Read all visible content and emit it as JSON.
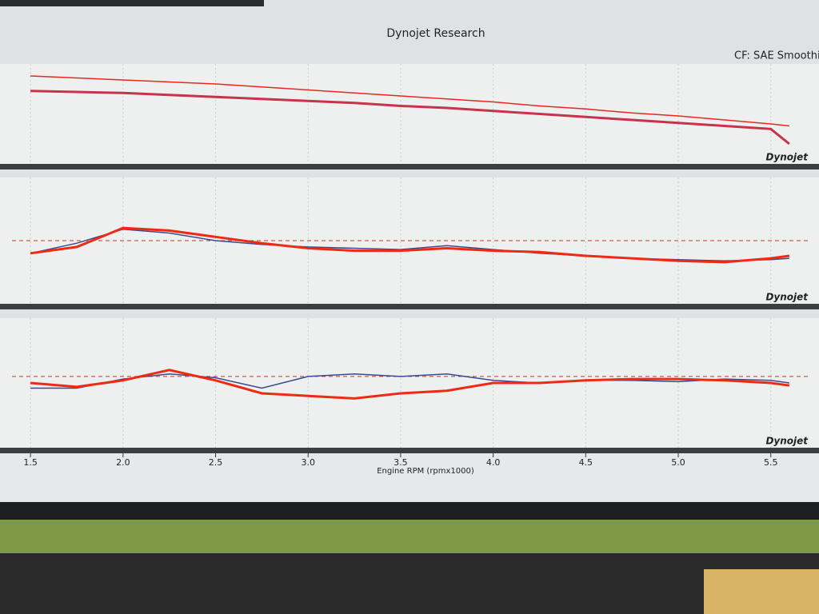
{
  "header": {
    "title": "Dynojet Research",
    "correction": "CF: SAE Smoothin"
  },
  "chart_data": [
    {
      "type": "line",
      "watermark": "Dynojet",
      "x": [
        1.5,
        1.75,
        2.0,
        2.25,
        2.5,
        2.75,
        3.0,
        3.25,
        3.5,
        3.75,
        4.0,
        4.25,
        4.5,
        4.75,
        5.0,
        5.25,
        5.5,
        5.6
      ],
      "xlim": [
        1.4,
        5.7
      ],
      "ylim": [
        0,
        100
      ],
      "series": [
        {
          "color": "#e8281c",
          "values": [
            88,
            86,
            84,
            82,
            80,
            77,
            74,
            71,
            68,
            65,
            62,
            58,
            55,
            51,
            48,
            44,
            40,
            38
          ]
        },
        {
          "color": "#c8324a",
          "values": [
            73,
            72,
            71,
            69,
            67,
            65,
            63,
            61,
            58,
            56,
            53,
            50,
            47,
            44,
            41,
            38,
            35,
            20
          ]
        }
      ]
    },
    {
      "type": "line",
      "watermark": "Dynojet",
      "x": [
        1.5,
        1.75,
        2.0,
        2.25,
        2.5,
        2.75,
        3.0,
        3.25,
        3.5,
        3.75,
        4.0,
        4.25,
        4.5,
        4.75,
        5.0,
        5.25,
        5.5,
        5.6
      ],
      "xlim": [
        1.4,
        5.7
      ],
      "ylim": [
        0,
        100
      ],
      "reference_line": 50,
      "series": [
        {
          "color": "#3a4a8c",
          "values": [
            40,
            48,
            59,
            56,
            50,
            47,
            45,
            44,
            43,
            46,
            43,
            40,
            38,
            36,
            35,
            34,
            35,
            36
          ]
        },
        {
          "color": "#ee2a12",
          "values": [
            40,
            45,
            60,
            58,
            53,
            48,
            44,
            42,
            42,
            44,
            42,
            41,
            38,
            36,
            34,
            33,
            36,
            38
          ]
        }
      ]
    },
    {
      "type": "line",
      "watermark": "Dynojet",
      "xlabel": "Engine RPM (rpmx1000)",
      "x": [
        1.5,
        1.75,
        2.0,
        2.25,
        2.5,
        2.75,
        3.0,
        3.25,
        3.5,
        3.75,
        4.0,
        4.25,
        4.5,
        4.75,
        5.0,
        5.25,
        5.5,
        5.6
      ],
      "xlim": [
        1.4,
        5.7
      ],
      "ylim": [
        0,
        100
      ],
      "reference_line": 55,
      "xticks": [
        1.5,
        {
          "value": 2,
          "label": "2.0"
        },
        2.5,
        {
          "value": 3,
          "label": "3.0"
        },
        3.5,
        {
          "value": 4,
          "label": "4.0"
        },
        4.5,
        {
          "value": 5,
          "label": "5.0"
        },
        5.5
      ],
      "series": [
        {
          "color": "#3a4a8c",
          "values": [
            46,
            46,
            53,
            57,
            54,
            46,
            55,
            57,
            55,
            57,
            52,
            50,
            52,
            52,
            51,
            53,
            52,
            50
          ]
        },
        {
          "color": "#ee2a12",
          "values": [
            50,
            47,
            52,
            60,
            52,
            42,
            40,
            38,
            42,
            44,
            50,
            50,
            52,
            53,
            53,
            52,
            50,
            48
          ]
        }
      ]
    }
  ]
}
